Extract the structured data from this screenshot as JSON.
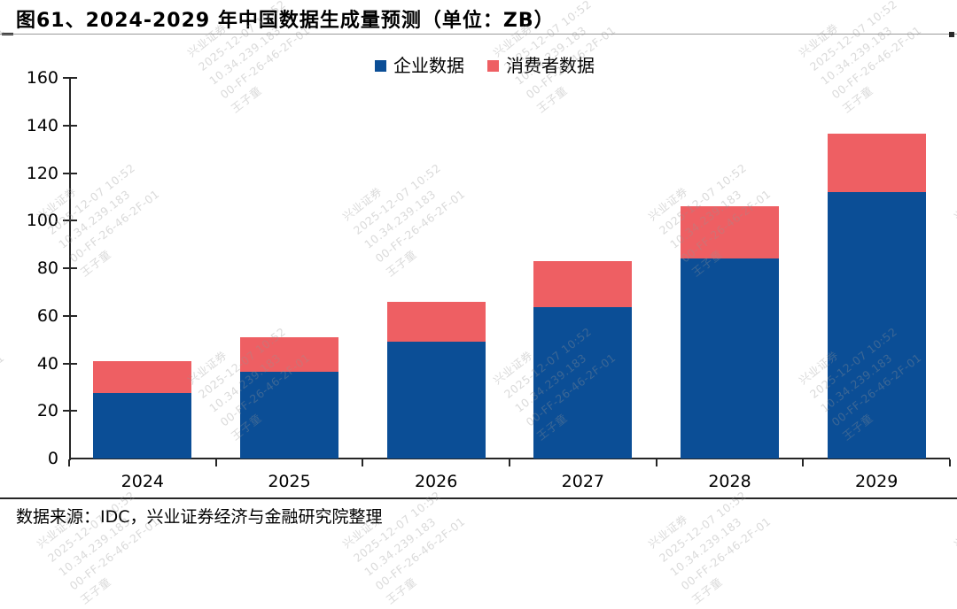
{
  "header": {
    "title": "图61、2024-2029 年中国数据生成量预测（单位：ZB）"
  },
  "footer": {
    "source": "数据来源：IDC，兴业证券经济与金融研究院整理"
  },
  "watermark": {
    "lines": [
      "兴业证券",
      "2025-12-07 10:52",
      "10.34.239.183",
      "00-FF-26-46-2F-01",
      "王子童"
    ]
  },
  "colors": {
    "enterprise": "#0B4E96",
    "consumer": "#EE5F63",
    "axis": "#262626"
  },
  "chart_data": {
    "type": "bar",
    "stacked": true,
    "title": "图61、2024-2029 年中国数据生成量预测（单位：ZB）",
    "unit": "ZB",
    "categories": [
      "2024",
      "2025",
      "2026",
      "2027",
      "2028",
      "2029"
    ],
    "series": [
      {
        "name": "企业数据",
        "color": "#0B4E96",
        "values": [
          27.5,
          36.5,
          49,
          63.5,
          84,
          112
        ]
      },
      {
        "name": "消费者数据",
        "color": "#EE5F63",
        "values": [
          13.5,
          14.5,
          17,
          19.5,
          22,
          24.5
        ]
      }
    ],
    "totals": [
      41,
      51,
      66,
      83,
      106,
      136.5
    ],
    "xlabel": "",
    "ylabel": "",
    "ylim": [
      0,
      160
    ],
    "ytick_step": 20,
    "grid": false,
    "legend_position": "top-center"
  }
}
